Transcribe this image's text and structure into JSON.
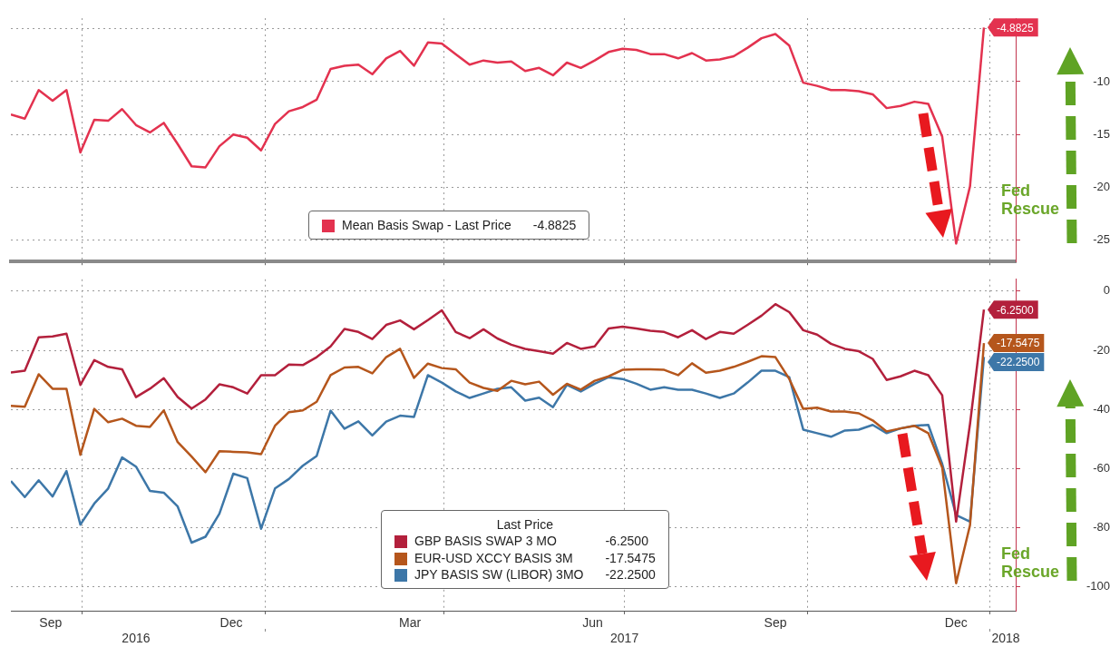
{
  "chart_data": [
    {
      "type": "line",
      "annotations": [
        "Fed Rescue"
      ],
      "legend": "bottom",
      "grid": true,
      "marker": "none",
      "tick_labels": "y",
      "x": [
        "2016-08-26",
        "2016-09-02",
        "2016-09-09",
        "2016-09-16",
        "2016-09-23",
        "2016-09-30",
        "2016-10-07",
        "2016-10-14",
        "2016-10-21",
        "2016-10-28",
        "2016-11-04",
        "2016-11-11",
        "2016-11-18",
        "2016-11-25",
        "2016-12-02",
        "2016-12-09",
        "2016-12-16",
        "2016-12-23",
        "2016-12-30",
        "2017-01-06",
        "2017-01-13",
        "2017-01-20",
        "2017-01-27",
        "2017-02-03",
        "2017-02-10",
        "2017-02-17",
        "2017-02-24",
        "2017-03-03",
        "2017-03-10",
        "2017-03-17",
        "2017-03-24",
        "2017-03-31",
        "2017-04-07",
        "2017-04-14",
        "2017-04-21",
        "2017-04-28",
        "2017-05-05",
        "2017-05-12",
        "2017-05-19",
        "2017-05-26",
        "2017-06-02",
        "2017-06-09",
        "2017-06-16",
        "2017-06-23",
        "2017-06-30",
        "2017-07-07",
        "2017-07-14",
        "2017-07-21",
        "2017-07-28",
        "2017-08-04",
        "2017-08-11",
        "2017-08-18",
        "2017-08-25",
        "2017-09-01",
        "2017-09-08",
        "2017-09-15",
        "2017-09-22",
        "2017-09-29",
        "2017-10-06",
        "2017-10-13",
        "2017-10-20",
        "2017-10-27",
        "2017-11-03",
        "2017-11-10",
        "2017-11-17",
        "2017-11-24",
        "2017-12-01",
        "2017-12-08",
        "2017-12-15",
        "2017-12-22",
        "2017-12-29"
      ],
      "series": [
        {
          "name": "Mean Basis Swap - Last Price",
          "color": "#e3324f",
          "values": [
            -13.1,
            -13.5,
            -10.8,
            -11.8,
            -10.8,
            -16.7,
            -13.6,
            -13.7,
            -12.6,
            -14.1,
            -14.8,
            -13.9,
            -15.9,
            -18.0,
            -18.1,
            -16.1,
            -15.0,
            -15.3,
            -16.5,
            -14.0,
            -12.8,
            -12.4,
            -11.7,
            -8.8,
            -8.5,
            -8.4,
            -9.3,
            -7.8,
            -7.1,
            -8.5,
            -6.3,
            -6.4,
            -7.4,
            -8.4,
            -8.0,
            -8.2,
            -8.1,
            -9.0,
            -8.7,
            -9.4,
            -8.2,
            -8.7,
            -8.0,
            -7.2,
            -6.9,
            -7.0,
            -7.4,
            -7.4,
            -7.8,
            -7.3,
            -8.0,
            -7.9,
            -7.6,
            -6.8,
            -5.9,
            -5.5,
            -6.6,
            -10.1,
            -10.4,
            -10.8,
            -10.8,
            -10.9,
            -11.2,
            -12.5,
            -12.3,
            -11.9,
            -12.1,
            -15.2,
            -25.3,
            -19.9,
            -4.8825
          ],
          "value_labels": [
            null,
            null,
            null,
            null,
            null,
            null,
            null,
            null,
            null,
            null,
            null,
            null,
            null,
            null,
            null,
            null,
            null,
            null,
            null,
            null,
            null,
            null,
            null,
            null,
            null,
            null,
            null,
            null,
            null,
            null,
            null,
            null,
            null,
            null,
            null,
            null,
            null,
            null,
            null,
            null,
            null,
            null,
            null,
            null,
            null,
            null,
            null,
            null,
            null,
            null,
            null,
            null,
            null,
            null,
            null,
            null,
            null,
            null,
            null,
            null,
            null,
            null,
            null,
            null,
            null,
            null,
            null,
            null,
            null,
            null,
            "-4.8825"
          ]
        }
      ],
      "xlim": [
        "2016-08-26",
        "2018-01-14"
      ],
      "xticks": [
        {
          "value": "2016-10-01",
          "label": null
        },
        {
          "value": "2017-01-01",
          "label": null
        },
        {
          "value": "2017-04-01",
          "label": null
        },
        {
          "value": "2017-07-01",
          "label": null
        },
        {
          "value": "2017-10-01",
          "label": null
        },
        {
          "value": "2018-01-01",
          "label": null
        }
      ],
      "ylim": [
        -27,
        -4
      ],
      "yticks": [
        {
          "value": -5,
          "label": null
        },
        -10,
        -15,
        -20,
        -25
      ]
    },
    {
      "type": "line",
      "annotations": [
        "Fed Rescue"
      ],
      "legend": "bottom",
      "legend_title": "Last Price",
      "grid": true,
      "marker": "none",
      "x": [
        "2016-08-26",
        "2016-09-02",
        "2016-09-09",
        "2016-09-16",
        "2016-09-23",
        "2016-09-30",
        "2016-10-07",
        "2016-10-14",
        "2016-10-21",
        "2016-10-28",
        "2016-11-04",
        "2016-11-11",
        "2016-11-18",
        "2016-11-25",
        "2016-12-02",
        "2016-12-09",
        "2016-12-16",
        "2016-12-23",
        "2016-12-30",
        "2017-01-06",
        "2017-01-13",
        "2017-01-20",
        "2017-01-27",
        "2017-02-03",
        "2017-02-10",
        "2017-02-17",
        "2017-02-24",
        "2017-03-03",
        "2017-03-10",
        "2017-03-17",
        "2017-03-24",
        "2017-03-31",
        "2017-04-07",
        "2017-04-14",
        "2017-04-21",
        "2017-04-28",
        "2017-05-05",
        "2017-05-12",
        "2017-05-19",
        "2017-05-26",
        "2017-06-02",
        "2017-06-09",
        "2017-06-16",
        "2017-06-23",
        "2017-06-30",
        "2017-07-07",
        "2017-07-14",
        "2017-07-21",
        "2017-07-28",
        "2017-08-04",
        "2017-08-11",
        "2017-08-18",
        "2017-08-25",
        "2017-09-01",
        "2017-09-08",
        "2017-09-15",
        "2017-09-22",
        "2017-09-29",
        "2017-10-06",
        "2017-10-13",
        "2017-10-20",
        "2017-10-27",
        "2017-11-03",
        "2017-11-10",
        "2017-11-17",
        "2017-11-24",
        "2017-12-01",
        "2017-12-08",
        "2017-12-15",
        "2017-12-22",
        "2017-12-29"
      ],
      "series": [
        {
          "name": "GBP BASIS SWAP 3 MO",
          "color": "#b3203c",
          "values": [
            -27.5,
            -26.9,
            -15.6,
            -15.3,
            -14.4,
            -31.7,
            -23.3,
            -25.6,
            -26.4,
            -35.8,
            -33.0,
            -29.4,
            -35.8,
            -39.7,
            -36.6,
            -31.5,
            -32.5,
            -34.6,
            -28.4,
            -28.4,
            -24.8,
            -25.0,
            -22.3,
            -18.7,
            -12.8,
            -13.8,
            -16.2,
            -11.4,
            -9.9,
            -12.9,
            -9.8,
            -6.5,
            -13.8,
            -15.9,
            -12.9,
            -16.0,
            -18.1,
            -19.5,
            -20.3,
            -21.1,
            -17.5,
            -19.5,
            -18.7,
            -12.6,
            -12.0,
            -12.6,
            -13.4,
            -13.8,
            -15.6,
            -13.2,
            -16.2,
            -13.8,
            -14.4,
            -11.4,
            -8.3,
            -4.4,
            -7.1,
            -13.2,
            -14.7,
            -17.8,
            -19.5,
            -20.3,
            -22.9,
            -30.0,
            -28.8,
            -26.9,
            -28.4,
            -35.2,
            -77.9,
            -44.9,
            -6.25
          ],
          "value_labels": [
            null,
            null,
            null,
            null,
            null,
            null,
            null,
            null,
            null,
            null,
            null,
            null,
            null,
            null,
            null,
            null,
            null,
            null,
            null,
            null,
            null,
            null,
            null,
            null,
            null,
            null,
            null,
            null,
            null,
            null,
            null,
            null,
            null,
            null,
            null,
            null,
            null,
            null,
            null,
            null,
            null,
            null,
            null,
            null,
            null,
            null,
            null,
            null,
            null,
            null,
            null,
            null,
            null,
            null,
            null,
            null,
            null,
            null,
            null,
            null,
            null,
            null,
            null,
            null,
            null,
            null,
            null,
            null,
            null,
            null,
            "-6.2500"
          ]
        },
        {
          "name": "EUR-USD XCCY BASIS 3M",
          "color": "#b5561c",
          "values": [
            -38.8,
            -39.1,
            -28.1,
            -33.0,
            -33.0,
            -55.3,
            -39.8,
            -44.3,
            -43.1,
            -45.5,
            -45.9,
            -40.3,
            -51.0,
            -55.9,
            -61.2,
            -54.1,
            -54.3,
            -54.5,
            -55.1,
            -45.5,
            -40.9,
            -40.3,
            -37.4,
            -28.4,
            -25.8,
            -25.6,
            -27.8,
            -22.3,
            -19.5,
            -29.3,
            -24.5,
            -26.0,
            -26.4,
            -30.9,
            -32.7,
            -33.7,
            -30.3,
            -31.5,
            -30.6,
            -35.0,
            -31.3,
            -33.3,
            -30.3,
            -28.8,
            -26.6,
            -26.4,
            -26.4,
            -26.6,
            -28.4,
            -24.4,
            -27.6,
            -26.9,
            -25.6,
            -23.9,
            -22.0,
            -22.3,
            -29.7,
            -39.8,
            -39.4,
            -40.7,
            -40.7,
            -41.3,
            -43.7,
            -47.4,
            -46.4,
            -45.5,
            -48.0,
            -59.6,
            -98.7,
            -79.1,
            -17.5475
          ],
          "value_labels": [
            null,
            null,
            null,
            null,
            null,
            null,
            null,
            null,
            null,
            null,
            null,
            null,
            null,
            null,
            null,
            null,
            null,
            null,
            null,
            null,
            null,
            null,
            null,
            null,
            null,
            null,
            null,
            null,
            null,
            null,
            null,
            null,
            null,
            null,
            null,
            null,
            null,
            null,
            null,
            null,
            null,
            null,
            null,
            null,
            null,
            null,
            null,
            null,
            null,
            null,
            null,
            null,
            null,
            null,
            null,
            null,
            null,
            null,
            null,
            null,
            null,
            null,
            null,
            null,
            null,
            null,
            null,
            null,
            null,
            null,
            "-17.5475"
          ]
        },
        {
          "name": "JPY BASIS SW (LIBOR) 3MO",
          "color": "#3d77a8",
          "values": [
            -64.2,
            -69.6,
            -63.9,
            -69.4,
            -60.8,
            -78.9,
            -71.8,
            -66.7,
            -56.2,
            -59.3,
            -67.5,
            -68.1,
            -72.8,
            -85.0,
            -83.0,
            -75.2,
            -61.7,
            -63.2,
            -80.3,
            -66.7,
            -63.5,
            -59.0,
            -55.7,
            -40.4,
            -46.5,
            -44.0,
            -48.8,
            -44.1,
            -42.1,
            -42.5,
            -28.4,
            -30.9,
            -33.9,
            -36.1,
            -34.6,
            -33.0,
            -32.5,
            -37.0,
            -36.0,
            -39.2,
            -31.7,
            -33.9,
            -31.3,
            -29.1,
            -29.7,
            -31.3,
            -33.3,
            -32.5,
            -33.3,
            -33.3,
            -34.6,
            -36.1,
            -34.6,
            -30.9,
            -26.9,
            -26.9,
            -29.1,
            -46.8,
            -48.0,
            -49.2,
            -47.1,
            -46.8,
            -45.2,
            -48.0,
            -46.4,
            -45.5,
            -45.2,
            -58.4,
            -75.7,
            -77.9,
            -22.25
          ],
          "value_labels": [
            null,
            null,
            null,
            null,
            null,
            null,
            null,
            null,
            null,
            null,
            null,
            null,
            null,
            null,
            null,
            null,
            null,
            null,
            null,
            null,
            null,
            null,
            null,
            null,
            null,
            null,
            null,
            null,
            null,
            null,
            null,
            null,
            null,
            null,
            null,
            null,
            null,
            null,
            null,
            null,
            null,
            null,
            null,
            null,
            null,
            null,
            null,
            null,
            null,
            null,
            null,
            null,
            null,
            null,
            null,
            null,
            null,
            null,
            null,
            null,
            null,
            null,
            null,
            null,
            null,
            null,
            null,
            null,
            null,
            null,
            "-22.2500"
          ]
        }
      ],
      "xlim": [
        "2016-08-26",
        "2018-01-14"
      ],
      "xticks": [
        {
          "value": "2016-09-15",
          "label": "Sep"
        },
        {
          "value": "2016-10-01",
          "label": null
        },
        {
          "value": "2016-12-15",
          "label": "Dec"
        },
        {
          "value": "2017-01-01",
          "label": null
        },
        {
          "value": "2017-03-15",
          "label": "Mar"
        },
        {
          "value": "2017-04-01",
          "label": null
        },
        {
          "value": "2017-06-15",
          "label": "Jun"
        },
        {
          "value": "2017-07-01",
          "label": null
        },
        {
          "value": "2017-09-15",
          "label": "Sep"
        },
        {
          "value": "2017-10-01",
          "label": null
        },
        {
          "value": "2017-12-15",
          "label": "Dec"
        },
        {
          "value": "2018-01-01",
          "label": null
        }
      ],
      "x2lim": [
        "2016-08-26",
        "2018-01-14"
      ],
      "x2ticks": [
        {
          "value": "2016-10-28",
          "label": "2016"
        },
        {
          "value": "2017-01-01",
          "label": null
        },
        {
          "value": "2017-07-01",
          "label": "2017"
        },
        {
          "value": "2018-01-01",
          "label": null
        },
        {
          "value": "2018-01-09",
          "label": "2018"
        }
      ],
      "ylim": [
        -108,
        4
      ],
      "yticks": [
        0,
        -20,
        -40,
        -60,
        -80,
        -100
      ]
    }
  ]
}
